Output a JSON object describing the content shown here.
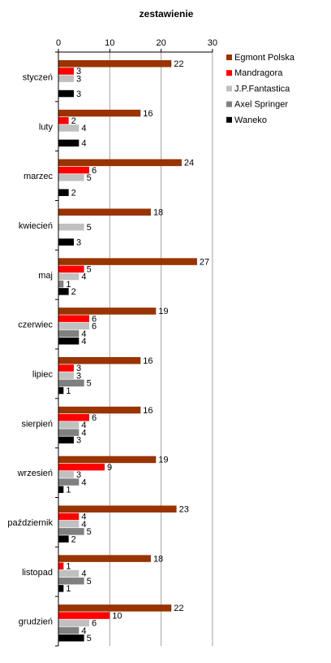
{
  "chart_data": {
    "type": "bar",
    "orientation": "horizontal",
    "title": "zestawienie",
    "xlabel": "",
    "ylabel": "",
    "xlim": [
      0,
      30
    ],
    "xticks": [
      0,
      10,
      20,
      30
    ],
    "grid": true,
    "legend_position": "right",
    "categories": [
      "styczeń",
      "luty",
      "marzec",
      "kwiecień",
      "maj",
      "czerwiec",
      "lipiec",
      "sierpień",
      "wrzesień",
      "październik",
      "listopad",
      "grudzień"
    ],
    "series": [
      {
        "name": "Egmont Polska",
        "color": "#993300",
        "values": [
          22,
          16,
          24,
          18,
          27,
          19,
          16,
          16,
          19,
          23,
          18,
          22
        ]
      },
      {
        "name": "Mandragora",
        "color": "#ff0000",
        "values": [
          3,
          2,
          6,
          null,
          5,
          6,
          3,
          6,
          9,
          4,
          1,
          10
        ]
      },
      {
        "name": "J.P.Fantastica",
        "color": "#c0c0c0",
        "values": [
          3,
          4,
          5,
          5,
          4,
          6,
          3,
          4,
          3,
          4,
          4,
          6
        ]
      },
      {
        "name": "Axel Springer",
        "color": "#808080",
        "values": [
          null,
          null,
          null,
          null,
          1,
          4,
          5,
          4,
          4,
          5,
          5,
          4
        ]
      },
      {
        "name": "Waneko",
        "color": "#000000",
        "values": [
          3,
          4,
          2,
          3,
          2,
          4,
          1,
          3,
          1,
          2,
          1,
          5
        ]
      }
    ]
  }
}
